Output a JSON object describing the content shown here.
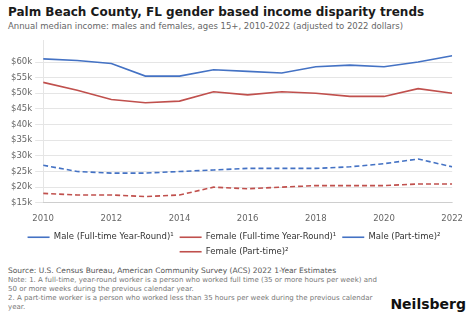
{
  "chart_data": {
    "type": "line",
    "title": "Palm Beach County, FL gender based income disparity trends",
    "subtitle": "Annual median income: males and females, ages 15+, 2010-2022 (adjusted to 2022 dollars)",
    "x": [
      2010,
      2011,
      2012,
      2013,
      2014,
      2015,
      2016,
      2017,
      2018,
      2019,
      2020,
      2021,
      2022
    ],
    "series": [
      {
        "name": "Male (Full-time Year-Round)¹",
        "color": "#4472C4",
        "line_style": "solid",
        "values": [
          61000,
          60500,
          59500,
          55500,
          55500,
          57500,
          57000,
          56500,
          58500,
          59000,
          58500,
          60000,
          62000
        ]
      },
      {
        "name": "Female (Full-time Year-Round)¹",
        "color": "#C0504D",
        "line_style": "solid",
        "values": [
          53500,
          51000,
          48000,
          47000,
          47500,
          50500,
          49500,
          50500,
          50000,
          49000,
          49000,
          51500,
          50000
        ]
      },
      {
        "name": "Male (Part-time)²",
        "color": "#4472C4",
        "line_style": "dashed",
        "values": [
          27000,
          25000,
          24500,
          24500,
          25000,
          25500,
          26000,
          26000,
          26000,
          26500,
          27500,
          29000,
          26500
        ]
      },
      {
        "name": "Female (Part-time)²",
        "color": "#C0504D",
        "line_style": "dashed",
        "values": [
          18000,
          17500,
          17500,
          17000,
          17500,
          20000,
          19500,
          20000,
          20500,
          20500,
          20500,
          21000,
          21000
        ]
      }
    ],
    "xlim": [
      2010,
      2022
    ],
    "xticks": [
      2010,
      2012,
      2014,
      2016,
      2018,
      2020,
      2022
    ],
    "ylim": [
      15000,
      67000
    ],
    "yticks": [
      {
        "value": 15000,
        "label": "$15k"
      },
      {
        "value": 20000,
        "label": "$20k"
      },
      {
        "value": 25000,
        "label": "$25k"
      },
      {
        "value": 30000,
        "label": "$30k"
      },
      {
        "value": 35000,
        "label": "$35k"
      },
      {
        "value": 40000,
        "label": "$40k"
      },
      {
        "value": 45000,
        "label": "$45k"
      },
      {
        "value": 50000,
        "label": "$50k"
      },
      {
        "value": 55000,
        "label": "$55k"
      },
      {
        "value": 60000,
        "label": "$60k"
      }
    ],
    "grid": "y",
    "legend": "bottom",
    "source": "Source: U.S. Census Bureau, American Community Survey (ACS) 2022 1-Year Estimates",
    "notes": [
      "Note: 1. A full-time, year-round worker is a person who worked full time (35 or more hours per week) and 50 or more weeks during the previous calendar year.",
      "2. A part-time worker is a person who worked less than 35 hours per week during the previous calendar year."
    ],
    "brand": "Neilsberg"
  }
}
